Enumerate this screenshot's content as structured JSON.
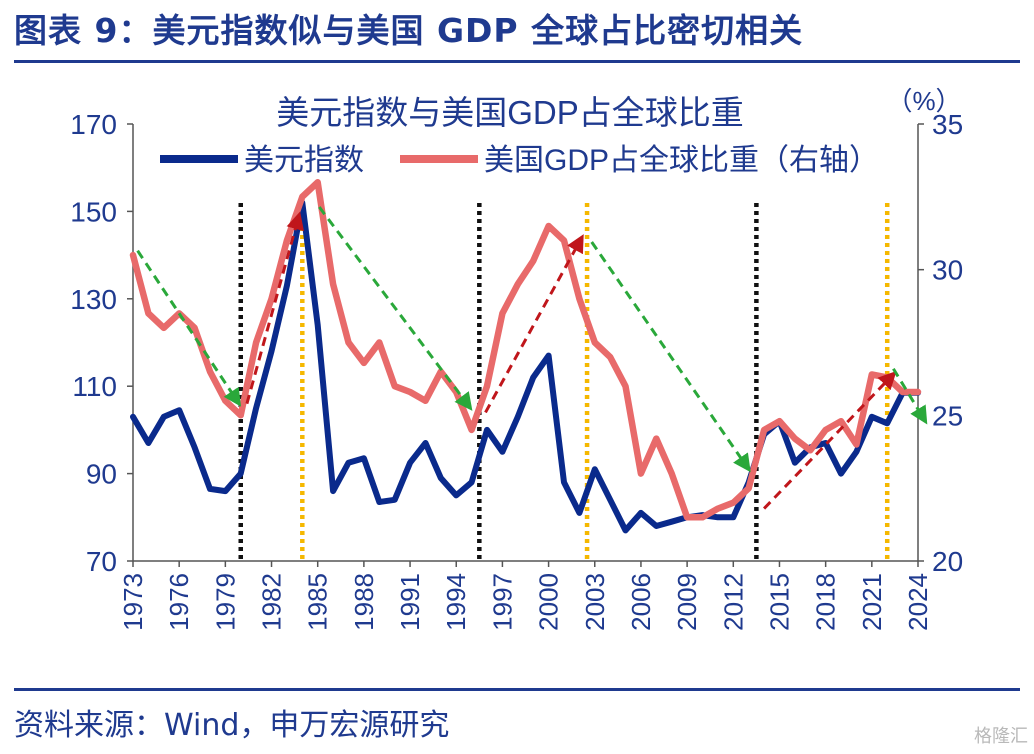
{
  "figure_title": "图表 9：美元指数似与美国 GDP 全球占比密切相关",
  "source": "资料来源：Wind，申万宏源研究",
  "watermark": "格隆汇",
  "colors": {
    "brand": "#1f3a8f",
    "dxy": "#0a2a8c",
    "gdp": "#e86a6a",
    "black_line": "#111111",
    "yellow_line": "#f5b800",
    "red_arrow": "#c0161b",
    "green_arrow": "#2aa83a"
  },
  "chart_data": {
    "type": "line",
    "title": "美元指数与美国GDP占全球比重",
    "right_unit": "（%）",
    "x_ticks": [
      "1973",
      "1976",
      "1979",
      "1982",
      "1985",
      "1988",
      "1991",
      "1994",
      "1997",
      "2000",
      "2003",
      "2006",
      "2009",
      "2012",
      "2015",
      "2018",
      "2021",
      "2024"
    ],
    "y_left": {
      "ticks": [
        "70",
        "90",
        "110",
        "130",
        "150",
        "170"
      ],
      "range": [
        70,
        170
      ]
    },
    "y_right": {
      "ticks": [
        "20",
        "25",
        "30",
        "35"
      ],
      "range": [
        20,
        35
      ]
    },
    "series": [
      {
        "name": "美元指数",
        "axis": "left",
        "x": [
          1973,
          1974,
          1975,
          1976,
          1977,
          1978,
          1979,
          1980,
          1981,
          1982,
          1983,
          1984,
          1985,
          1986,
          1987,
          1988,
          1989,
          1990,
          1991,
          1992,
          1993,
          1994,
          1995,
          1996,
          1997,
          1998,
          1999,
          2000,
          2001,
          2002,
          2003,
          2004,
          2005,
          2006,
          2007,
          2008,
          2009,
          2010,
          2011,
          2012,
          2013,
          2014,
          2015,
          2016,
          2017,
          2018,
          2019,
          2020,
          2021,
          2022,
          2023,
          2024
        ],
        "values": [
          103,
          97,
          103,
          104.5,
          96,
          86.5,
          86,
          90,
          105,
          118,
          133,
          152,
          124,
          86,
          92.5,
          93.5,
          83.5,
          84,
          92.5,
          97,
          89,
          85,
          88,
          100,
          95,
          103,
          112,
          117,
          88,
          81,
          91,
          84,
          77,
          81,
          78,
          79,
          80,
          80.5,
          80,
          80,
          88,
          99,
          102,
          92.5,
          96,
          97,
          90,
          95,
          103,
          101.5,
          108.5,
          108.5
        ]
      },
      {
        "name": "美国GDP占全球比重（右轴）",
        "axis": "right",
        "x": [
          1973,
          1974,
          1975,
          1976,
          1977,
          1978,
          1979,
          1980,
          1981,
          1982,
          1983,
          1984,
          1985,
          1986,
          1987,
          1988,
          1989,
          1990,
          1991,
          1992,
          1993,
          1994,
          1995,
          1996,
          1997,
          1998,
          1999,
          2000,
          2001,
          2002,
          2003,
          2004,
          2005,
          2006,
          2007,
          2008,
          2009,
          2010,
          2011,
          2012,
          2013,
          2014,
          2015,
          2016,
          2017,
          2018,
          2019,
          2020,
          2021,
          2022,
          2023,
          2024
        ],
        "values": [
          30.5,
          28.5,
          28,
          28.5,
          28,
          26.5,
          25.5,
          25,
          27.5,
          29,
          31,
          32.5,
          33,
          29.5,
          27.5,
          26.8,
          27.5,
          26,
          25.8,
          25.5,
          26.5,
          25.8,
          24.5,
          26,
          28.5,
          29.5,
          30.3,
          31.5,
          31,
          29,
          27.5,
          27,
          26,
          23,
          24.2,
          23,
          21.5,
          21.5,
          21.8,
          22,
          22.5,
          24.5,
          24.8,
          24.2,
          23.8,
          24.5,
          24.8,
          24,
          26.4,
          26.3,
          25.8,
          25.8
        ]
      }
    ],
    "vertical_lines": [
      {
        "year": 1980,
        "style": "black"
      },
      {
        "year": 1984,
        "style": "yellow"
      },
      {
        "year": 1995.5,
        "style": "black"
      },
      {
        "year": 2002.5,
        "style": "yellow"
      },
      {
        "year": 2013.5,
        "style": "black"
      },
      {
        "year": 2022,
        "style": "yellow"
      }
    ],
    "trend_arrows": [
      {
        "color": "green",
        "from": [
          1973.3,
          141
        ],
        "to": [
          1979.7,
          107
        ],
        "axis": "left"
      },
      {
        "color": "red",
        "from": [
          1980.4,
          106
        ],
        "to": [
          1983.7,
          148
        ],
        "axis": "left"
      },
      {
        "color": "green",
        "from": [
          1985.1,
          151
        ],
        "to": [
          1994.7,
          106
        ],
        "axis": "left"
      },
      {
        "color": "red",
        "from": [
          1995.9,
          104
        ],
        "to": [
          2002,
          143
        ],
        "axis": "left"
      },
      {
        "color": "green",
        "from": [
          2002.8,
          143
        ],
        "to": [
          2012.8,
          92
        ],
        "axis": "left"
      },
      {
        "color": "red",
        "from": [
          2014,
          82
        ],
        "to": [
          2022.2,
          112
        ],
        "axis": "left"
      },
      {
        "color": "green",
        "from": [
          2022.4,
          114
        ],
        "to": [
          2024.3,
          103
        ],
        "axis": "left"
      }
    ]
  }
}
